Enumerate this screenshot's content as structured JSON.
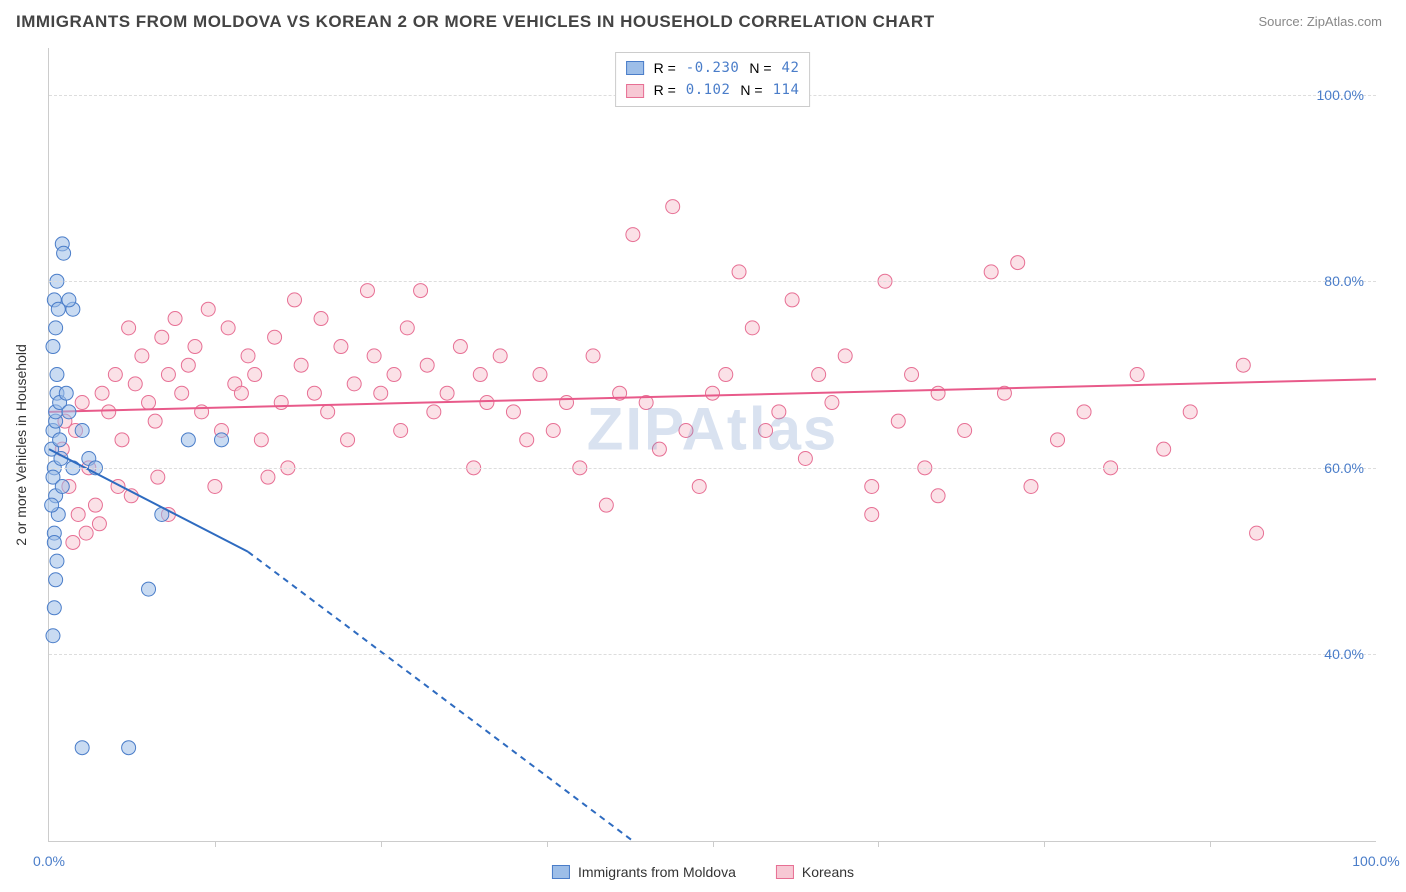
{
  "title": "IMMIGRANTS FROM MOLDOVA VS KOREAN 2 OR MORE VEHICLES IN HOUSEHOLD CORRELATION CHART",
  "source": "Source: ZipAtlas.com",
  "y_axis_title": "2 or more Vehicles in Household",
  "watermark": "ZIPAtlas",
  "colors": {
    "blue_fill": "#9dbee8",
    "blue_stroke": "#4a7dc9",
    "blue_line": "#2e6bc0",
    "pink_fill": "#f7c8d4",
    "pink_stroke": "#e76f94",
    "pink_line": "#e85a8a",
    "tick_label": "#4a7dc9",
    "grid": "#dddddd",
    "axis": "#cccccc",
    "text": "#333333"
  },
  "chart": {
    "type": "scatter",
    "xlim": [
      0,
      100
    ],
    "ylim": [
      20,
      105
    ],
    "x_ticks": [
      0,
      100
    ],
    "x_tick_labels": [
      "0.0%",
      "100.0%"
    ],
    "x_minor_ticks": [
      12.5,
      25,
      37.5,
      50,
      62.5,
      75,
      87.5
    ],
    "y_ticks": [
      40,
      60,
      80,
      100
    ],
    "y_tick_labels": [
      "40.0%",
      "60.0%",
      "80.0%",
      "100.0%"
    ],
    "marker_radius": 7,
    "marker_opacity": 0.55,
    "line_width": 2
  },
  "stats": [
    {
      "swatch_fill": "#9dbee8",
      "swatch_stroke": "#4a7dc9",
      "r_label": "R =",
      "r_val": "-0.230",
      "n_label": "N =",
      "n_val": "42"
    },
    {
      "swatch_fill": "#f7c8d4",
      "swatch_stroke": "#e76f94",
      "r_label": "R =",
      "r_val": "0.102",
      "n_label": "N =",
      "n_val": "114"
    }
  ],
  "legend": [
    {
      "swatch_fill": "#9dbee8",
      "swatch_stroke": "#4a7dc9",
      "label": "Immigrants from Moldova"
    },
    {
      "swatch_fill": "#f7c8d4",
      "swatch_stroke": "#e76f94",
      "label": "Koreans"
    }
  ],
  "series": {
    "moldova": {
      "color_fill": "#9dbee8",
      "color_stroke": "#4a7dc9",
      "trend": {
        "x1": 0,
        "y1": 62,
        "x2_solid": 15,
        "y2_solid": 51,
        "x2_dash": 44,
        "y2_dash": 20,
        "color": "#2e6bc0"
      },
      "points": [
        [
          0.2,
          62
        ],
        [
          0.3,
          64
        ],
        [
          0.5,
          65
        ],
        [
          0.6,
          68
        ],
        [
          0.4,
          60
        ],
        [
          0.8,
          63
        ],
        [
          0.3,
          59
        ],
        [
          0.5,
          57
        ],
        [
          0.6,
          70
        ],
        [
          0.7,
          55
        ],
        [
          0.4,
          53
        ],
        [
          0.9,
          61
        ],
        [
          0.5,
          66
        ],
        [
          1.0,
          58
        ],
        [
          0.6,
          50
        ],
        [
          0.8,
          67
        ],
        [
          0.3,
          73
        ],
        [
          0.5,
          75
        ],
        [
          0.4,
          78
        ],
        [
          0.7,
          77
        ],
        [
          0.6,
          80
        ],
        [
          1.0,
          84
        ],
        [
          0.2,
          56
        ],
        [
          0.4,
          52
        ],
        [
          0.5,
          48
        ],
        [
          1.8,
          77
        ],
        [
          2.5,
          64
        ],
        [
          3.0,
          61
        ],
        [
          3.5,
          60
        ],
        [
          1.3,
          68
        ],
        [
          1.5,
          66
        ],
        [
          0.4,
          45
        ],
        [
          0.3,
          42
        ],
        [
          1.1,
          83
        ],
        [
          1.5,
          78
        ],
        [
          8.5,
          55
        ],
        [
          10.5,
          63
        ],
        [
          13.0,
          63
        ],
        [
          7.5,
          47
        ],
        [
          2.5,
          30
        ],
        [
          6.0,
          30
        ],
        [
          1.8,
          60
        ]
      ]
    },
    "koreans": {
      "color_fill": "#f7c8d4",
      "color_stroke": "#e76f94",
      "trend": {
        "x1": 0,
        "y1": 66,
        "x2": 100,
        "y2": 69.5,
        "color": "#e85a8a"
      },
      "points": [
        [
          1.0,
          62
        ],
        [
          1.2,
          65
        ],
        [
          1.5,
          58
        ],
        [
          2.0,
          64
        ],
        [
          2.5,
          67
        ],
        [
          3.0,
          60
        ],
        [
          3.5,
          56
        ],
        [
          4.0,
          68
        ],
        [
          4.5,
          66
        ],
        [
          5.0,
          70
        ],
        [
          5.5,
          63
        ],
        [
          6.0,
          75
        ],
        [
          6.5,
          69
        ],
        [
          7.0,
          72
        ],
        [
          7.5,
          67
        ],
        [
          8.0,
          65
        ],
        [
          8.5,
          74
        ],
        [
          9.0,
          70
        ],
        [
          9.5,
          76
        ],
        [
          10,
          68
        ],
        [
          10.5,
          71
        ],
        [
          11,
          73
        ],
        [
          11.5,
          66
        ],
        [
          12,
          77
        ],
        [
          13,
          64
        ],
        [
          13.5,
          75
        ],
        [
          14,
          69
        ],
        [
          14.5,
          68
        ],
        [
          15,
          72
        ],
        [
          15.5,
          70
        ],
        [
          16,
          63
        ],
        [
          17,
          74
        ],
        [
          17.5,
          67
        ],
        [
          18,
          60
        ],
        [
          18.5,
          78
        ],
        [
          19,
          71
        ],
        [
          20,
          68
        ],
        [
          20.5,
          76
        ],
        [
          21,
          66
        ],
        [
          22,
          73
        ],
        [
          22.5,
          63
        ],
        [
          23,
          69
        ],
        [
          24,
          79
        ],
        [
          24.5,
          72
        ],
        [
          25,
          68
        ],
        [
          26,
          70
        ],
        [
          26.5,
          64
        ],
        [
          27,
          75
        ],
        [
          28,
          79
        ],
        [
          28.5,
          71
        ],
        [
          29,
          66
        ],
        [
          30,
          68
        ],
        [
          31,
          73
        ],
        [
          32,
          60
        ],
        [
          32.5,
          70
        ],
        [
          33,
          67
        ],
        [
          34,
          72
        ],
        [
          35,
          66
        ],
        [
          36,
          63
        ],
        [
          37,
          70
        ],
        [
          38,
          64
        ],
        [
          39,
          67
        ],
        [
          40,
          60
        ],
        [
          41,
          72
        ],
        [
          42,
          56
        ],
        [
          43,
          68
        ],
        [
          44,
          85
        ],
        [
          45,
          67
        ],
        [
          46,
          62
        ],
        [
          47,
          88
        ],
        [
          48,
          64
        ],
        [
          49,
          58
        ],
        [
          50,
          68
        ],
        [
          51,
          70
        ],
        [
          52,
          81
        ],
        [
          53,
          75
        ],
        [
          54,
          64
        ],
        [
          55,
          66
        ],
        [
          56,
          78
        ],
        [
          57,
          61
        ],
        [
          58,
          70
        ],
        [
          59,
          67
        ],
        [
          60,
          72
        ],
        [
          62,
          58
        ],
        [
          63,
          80
        ],
        [
          64,
          65
        ],
        [
          65,
          70
        ],
        [
          66,
          60
        ],
        [
          67,
          68
        ],
        [
          69,
          64
        ],
        [
          71,
          81
        ],
        [
          72,
          68
        ],
        [
          73,
          82
        ],
        [
          74,
          58
        ],
        [
          76,
          63
        ],
        [
          78,
          66
        ],
        [
          80,
          60
        ],
        [
          82,
          70
        ],
        [
          84,
          62
        ],
        [
          86,
          66
        ],
        [
          90,
          71
        ],
        [
          91,
          53
        ],
        [
          67,
          57
        ],
        [
          62,
          55
        ],
        [
          2.2,
          55
        ],
        [
          3.8,
          54
        ],
        [
          5.2,
          58
        ],
        [
          8.2,
          59
        ],
        [
          1.8,
          52
        ],
        [
          2.8,
          53
        ],
        [
          6.2,
          57
        ],
        [
          9.0,
          55
        ],
        [
          12.5,
          58
        ],
        [
          16.5,
          59
        ]
      ]
    }
  }
}
